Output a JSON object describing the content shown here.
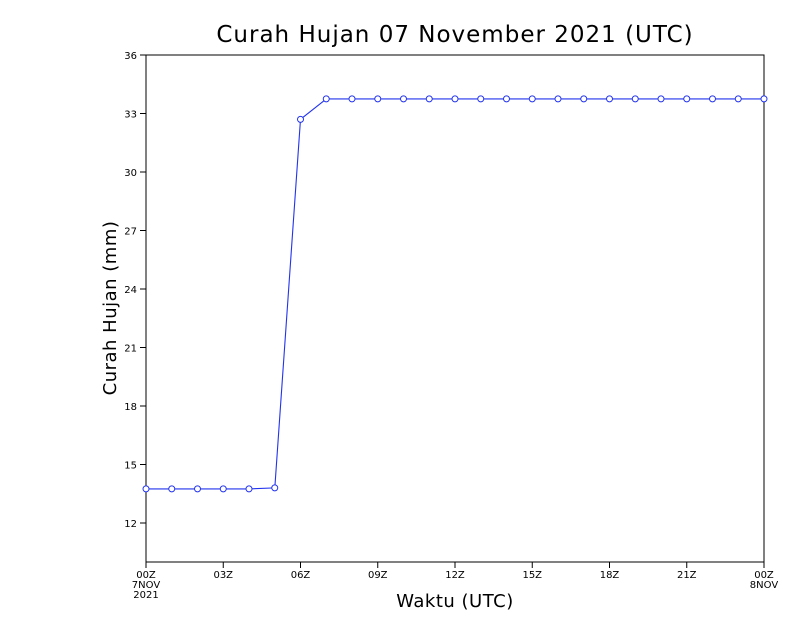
{
  "chart_data": {
    "type": "line",
    "title": "Curah Hujan 07 November 2021 (UTC)",
    "xlabel": "Waktu (UTC)",
    "ylabel": "Curah Hujan (mm)",
    "ylim": [
      10,
      36
    ],
    "xlim": [
      0,
      24
    ],
    "y_ticks": [
      12,
      15,
      18,
      21,
      24,
      27,
      30,
      33,
      36
    ],
    "x_ticks": [
      {
        "hour": 0,
        "label": "00Z",
        "sub": [
          "7NOV",
          "2021"
        ]
      },
      {
        "hour": 3,
        "label": "03Z",
        "sub": []
      },
      {
        "hour": 6,
        "label": "06Z",
        "sub": []
      },
      {
        "hour": 9,
        "label": "09Z",
        "sub": []
      },
      {
        "hour": 12,
        "label": "12Z",
        "sub": []
      },
      {
        "hour": 15,
        "label": "15Z",
        "sub": []
      },
      {
        "hour": 18,
        "label": "18Z",
        "sub": []
      },
      {
        "hour": 21,
        "label": "21Z",
        "sub": []
      },
      {
        "hour": 24,
        "label": "00Z",
        "sub": [
          "8NOV"
        ]
      }
    ],
    "grid": false,
    "series": [
      {
        "color": "#2233ee",
        "x": [
          0,
          1,
          2,
          3,
          4,
          5,
          6,
          7,
          8,
          9,
          10,
          11,
          12,
          13,
          14,
          15,
          16,
          17,
          18,
          19,
          20,
          21,
          22,
          23,
          24
        ],
        "y": [
          13.75,
          13.75,
          13.75,
          13.75,
          13.75,
          13.8,
          32.7,
          33.75,
          33.75,
          33.75,
          33.75,
          33.75,
          33.75,
          33.75,
          33.75,
          33.75,
          33.75,
          33.75,
          33.75,
          33.75,
          33.75,
          33.75,
          33.75,
          33.75,
          33.75
        ]
      }
    ]
  }
}
